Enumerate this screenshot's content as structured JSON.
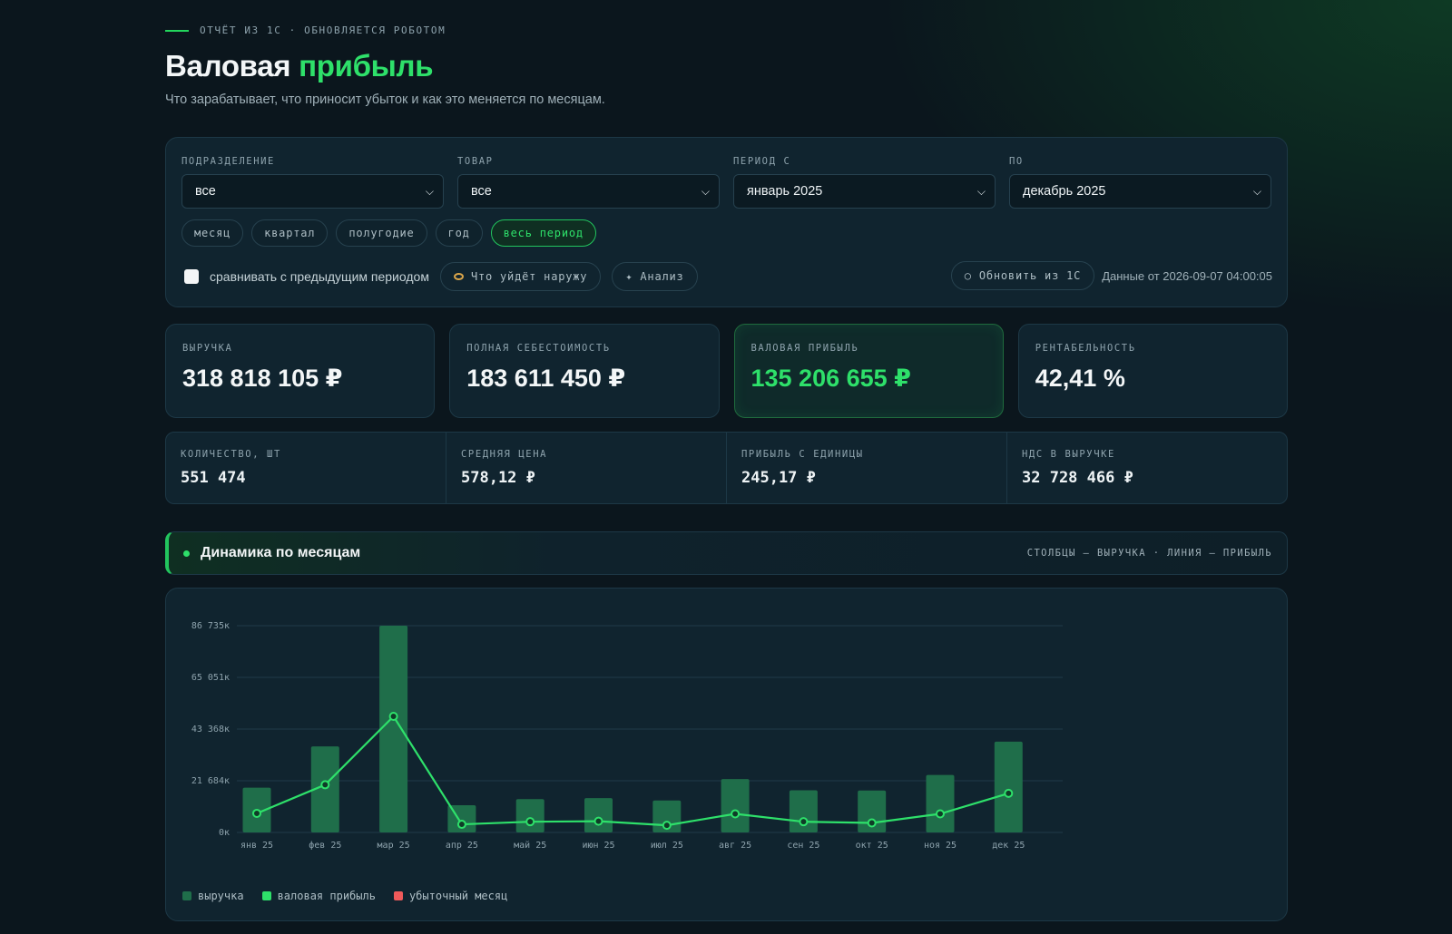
{
  "header": {
    "kicker": "ОТЧЁТ ИЗ 1С · ОБНОВЛЯЕТСЯ РОБОТОМ",
    "title_main": "Валовая",
    "title_accent": "прибыль",
    "subtitle": "Что зарабатывает, что приносит убыток и как это меняется по месяцам."
  },
  "filters": {
    "division": {
      "label": "ПОДРАЗДЕЛЕНИЕ",
      "value": "все"
    },
    "product": {
      "label": "ТОВАР",
      "value": "все"
    },
    "period_from": {
      "label": "ПЕРИОД С",
      "value": "январь 2025"
    },
    "period_to": {
      "label": "ПО",
      "value": "декабрь 2025"
    },
    "granularity": [
      "месяц",
      "квартал",
      "полугодие",
      "год",
      "весь период"
    ],
    "granularity_active": "весь период",
    "compare_label": "сравнивать с предыдущим периодом",
    "compare_checked": false,
    "leak_button": "Что уйдёт наружу",
    "analysis_button": "✦ Анализ",
    "refresh_button": "○ Обновить из 1С",
    "data_stamp": "Данные от 2026-09-07 04:00:05"
  },
  "kpis": [
    {
      "label": "ВЫРУЧКА",
      "value": "318 818 105 ₽",
      "highlight": false
    },
    {
      "label": "ПОЛНАЯ СЕБЕСТОИМОСТЬ",
      "value": "183 611 450 ₽",
      "highlight": false
    },
    {
      "label": "ВАЛОВАЯ ПРИБЫЛЬ",
      "value": "135 206 655 ₽",
      "highlight": true
    },
    {
      "label": "РЕНТАБЕЛЬНОСТЬ",
      "value": "42,41 %",
      "highlight": false
    }
  ],
  "stats": [
    {
      "label": "КОЛИЧЕСТВО, ШТ",
      "value": "551 474"
    },
    {
      "label": "СРЕДНЯЯ ЦЕНА",
      "value": "578,12 ₽"
    },
    {
      "label": "ПРИБЫЛЬ С ЕДИНИЦЫ",
      "value": "245,17 ₽"
    },
    {
      "label": "НДС В ВЫРУЧКЕ",
      "value": "32 728 466 ₽"
    }
  ],
  "section": {
    "title": "Динамика по месяцам",
    "hint": "СТОЛБЦЫ — ВЫРУЧКА · ЛИНИЯ — ПРИБЫЛЬ"
  },
  "colors": {
    "accent": "#2ee06a",
    "bar": "#1f6e4a",
    "loss": "#f05a5a"
  },
  "chart_data": {
    "type": "bar",
    "categories": [
      "янв 25",
      "фев 25",
      "мар 25",
      "апр 25",
      "май 25",
      "июн 25",
      "июл 25",
      "авг 25",
      "сен 25",
      "окт 25",
      "ноя 25",
      "дек 25"
    ],
    "yticks": [
      "0к",
      "21 684к",
      "43 368к",
      "65 051к",
      "86 735к"
    ],
    "ylim": [
      0,
      86735
    ],
    "series": [
      {
        "name": "выручка",
        "kind": "bar",
        "values": [
          18800,
          36100,
          86735,
          11400,
          14000,
          14400,
          13400,
          22400,
          17700,
          17600,
          24100,
          38100
        ]
      },
      {
        "name": "валовая прибыль",
        "kind": "line",
        "values": [
          8000,
          20000,
          48700,
          3400,
          4500,
          4700,
          3000,
          7800,
          4500,
          4000,
          7800,
          16400
        ]
      }
    ],
    "legend": [
      {
        "name": "выручка",
        "color": "#1f6e4a"
      },
      {
        "name": "валовая прибыль",
        "color": "#2ee06a"
      },
      {
        "name": "убыточный месяц",
        "color": "#f05a5a"
      }
    ],
    "grid": true
  }
}
